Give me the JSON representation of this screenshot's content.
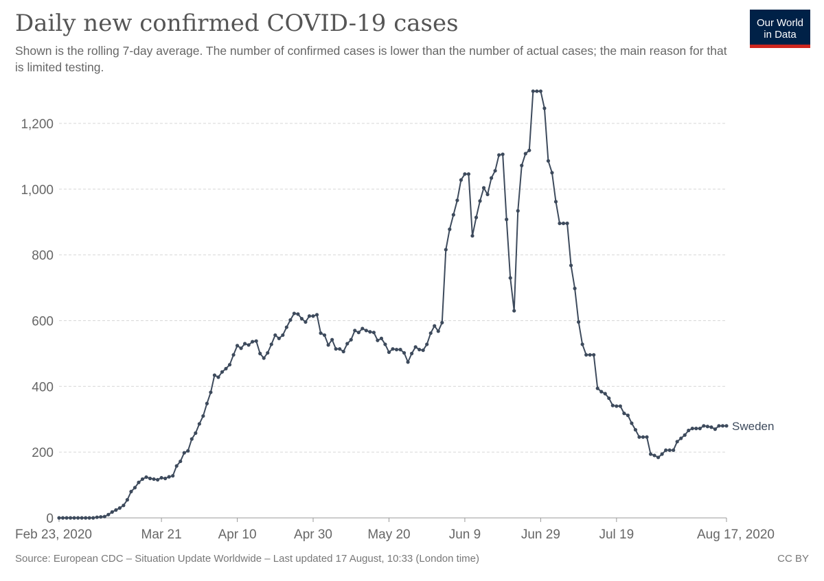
{
  "header": {
    "title": "Daily new confirmed COVID-19 cases",
    "subtitle": "Shown is the rolling 7-day average. The number of confirmed cases is lower than the number of actual cases; the main reason for that is limited testing."
  },
  "logo": {
    "line1": "Our World",
    "line2": "in Data",
    "bg_color": "#002147",
    "accent_color": "#ce261e"
  },
  "footer": {
    "source": "Source: European CDC – Situation Update Worldwide – Last updated 17 August, 10:33 (London time)",
    "license": "CC BY"
  },
  "chart_data": {
    "type": "line",
    "title": "Daily new confirmed COVID-19 cases",
    "xlabel": "",
    "ylabel": "",
    "ylim": [
      0,
      1300
    ],
    "y_ticks": [
      0,
      200,
      400,
      600,
      800,
      1000,
      1200
    ],
    "y_tick_labels": [
      "0",
      "200",
      "400",
      "600",
      "800",
      "1,000",
      "1,200"
    ],
    "x_start": "2020-02-23",
    "x_end": "2020-08-17",
    "x_ticks": [
      {
        "date": "2020-02-23",
        "label": "Feb 23, 2020"
      },
      {
        "date": "2020-03-21",
        "label": "Mar 21"
      },
      {
        "date": "2020-04-10",
        "label": "Apr 10"
      },
      {
        "date": "2020-04-30",
        "label": "Apr 30"
      },
      {
        "date": "2020-05-20",
        "label": "May 20"
      },
      {
        "date": "2020-06-09",
        "label": "Jun 9"
      },
      {
        "date": "2020-06-29",
        "label": "Jun 29"
      },
      {
        "date": "2020-07-19",
        "label": "Jul 19"
      },
      {
        "date": "2020-08-17",
        "label": "Aug 17, 2020"
      }
    ],
    "grid": true,
    "line_color": "#3d4a5c",
    "series": [
      {
        "name": "Sweden",
        "points": [
          [
            "2020-02-23",
            0
          ],
          [
            "2020-02-24",
            0
          ],
          [
            "2020-02-25",
            0
          ],
          [
            "2020-02-26",
            0
          ],
          [
            "2020-02-27",
            0
          ],
          [
            "2020-02-28",
            0
          ],
          [
            "2020-02-29",
            0
          ],
          [
            "2020-03-01",
            0
          ],
          [
            "2020-03-02",
            0
          ],
          [
            "2020-03-03",
            0
          ],
          [
            "2020-03-04",
            2
          ],
          [
            "2020-03-05",
            3
          ],
          [
            "2020-03-06",
            4
          ],
          [
            "2020-03-07",
            10
          ],
          [
            "2020-03-08",
            18
          ],
          [
            "2020-03-09",
            24
          ],
          [
            "2020-03-10",
            30
          ],
          [
            "2020-03-11",
            38
          ],
          [
            "2020-03-12",
            55
          ],
          [
            "2020-03-13",
            80
          ],
          [
            "2020-03-14",
            92
          ],
          [
            "2020-03-15",
            108
          ],
          [
            "2020-03-16",
            118
          ],
          [
            "2020-03-17",
            124
          ],
          [
            "2020-03-18",
            120
          ],
          [
            "2020-03-19",
            118
          ],
          [
            "2020-03-20",
            116
          ],
          [
            "2020-03-21",
            122
          ],
          [
            "2020-03-22",
            120
          ],
          [
            "2020-03-23",
            125
          ],
          [
            "2020-03-24",
            128
          ],
          [
            "2020-03-25",
            158
          ],
          [
            "2020-03-26",
            172
          ],
          [
            "2020-03-27",
            198
          ],
          [
            "2020-03-28",
            204
          ],
          [
            "2020-03-29",
            240
          ],
          [
            "2020-03-30",
            258
          ],
          [
            "2020-03-31",
            286
          ],
          [
            "2020-04-01",
            310
          ],
          [
            "2020-04-02",
            348
          ],
          [
            "2020-04-03",
            382
          ],
          [
            "2020-04-04",
            434
          ],
          [
            "2020-04-05",
            428
          ],
          [
            "2020-04-06",
            444
          ],
          [
            "2020-04-07",
            454
          ],
          [
            "2020-04-08",
            466
          ],
          [
            "2020-04-09",
            496
          ],
          [
            "2020-04-10",
            524
          ],
          [
            "2020-04-11",
            516
          ],
          [
            "2020-04-12",
            530
          ],
          [
            "2020-04-13",
            526
          ],
          [
            "2020-04-14",
            536
          ],
          [
            "2020-04-15",
            538
          ],
          [
            "2020-04-16",
            500
          ],
          [
            "2020-04-17",
            486
          ],
          [
            "2020-04-18",
            502
          ],
          [
            "2020-04-19",
            528
          ],
          [
            "2020-04-20",
            556
          ],
          [
            "2020-04-21",
            546
          ],
          [
            "2020-04-22",
            556
          ],
          [
            "2020-04-23",
            580
          ],
          [
            "2020-04-24",
            602
          ],
          [
            "2020-04-25",
            622
          ],
          [
            "2020-04-26",
            620
          ],
          [
            "2020-04-27",
            606
          ],
          [
            "2020-04-28",
            596
          ],
          [
            "2020-04-29",
            614
          ],
          [
            "2020-04-30",
            614
          ],
          [
            "2020-05-01",
            618
          ],
          [
            "2020-05-02",
            562
          ],
          [
            "2020-05-03",
            556
          ],
          [
            "2020-05-04",
            526
          ],
          [
            "2020-05-05",
            542
          ],
          [
            "2020-05-06",
            514
          ],
          [
            "2020-05-07",
            514
          ],
          [
            "2020-05-08",
            506
          ],
          [
            "2020-05-09",
            530
          ],
          [
            "2020-05-10",
            542
          ],
          [
            "2020-05-11",
            570
          ],
          [
            "2020-05-12",
            564
          ],
          [
            "2020-05-13",
            576
          ],
          [
            "2020-05-14",
            570
          ],
          [
            "2020-05-15",
            566
          ],
          [
            "2020-05-16",
            564
          ],
          [
            "2020-05-17",
            540
          ],
          [
            "2020-05-18",
            546
          ],
          [
            "2020-05-19",
            528
          ],
          [
            "2020-05-20",
            504
          ],
          [
            "2020-05-21",
            514
          ],
          [
            "2020-05-22",
            512
          ],
          [
            "2020-05-23",
            512
          ],
          [
            "2020-05-24",
            502
          ],
          [
            "2020-05-25",
            474
          ],
          [
            "2020-05-26",
            500
          ],
          [
            "2020-05-27",
            520
          ],
          [
            "2020-05-28",
            512
          ],
          [
            "2020-05-29",
            510
          ],
          [
            "2020-05-30",
            528
          ],
          [
            "2020-05-31",
            562
          ],
          [
            "2020-06-01",
            584
          ],
          [
            "2020-06-02",
            568
          ],
          [
            "2020-06-03",
            594
          ],
          [
            "2020-06-04",
            816
          ],
          [
            "2020-06-05",
            878
          ],
          [
            "2020-06-06",
            922
          ],
          [
            "2020-06-07",
            966
          ],
          [
            "2020-06-08",
            1028
          ],
          [
            "2020-06-09",
            1046
          ],
          [
            "2020-06-10",
            1046
          ],
          [
            "2020-06-11",
            858
          ],
          [
            "2020-06-12",
            914
          ],
          [
            "2020-06-13",
            964
          ],
          [
            "2020-06-14",
            1004
          ],
          [
            "2020-06-15",
            984
          ],
          [
            "2020-06-16",
            1034
          ],
          [
            "2020-06-17",
            1056
          ],
          [
            "2020-06-18",
            1104
          ],
          [
            "2020-06-19",
            1106
          ],
          [
            "2020-06-20",
            908
          ],
          [
            "2020-06-21",
            730
          ],
          [
            "2020-06-22",
            630
          ],
          [
            "2020-06-23",
            934
          ],
          [
            "2020-06-24",
            1072
          ],
          [
            "2020-06-25",
            1108
          ],
          [
            "2020-06-26",
            1118
          ],
          [
            "2020-06-27",
            1298
          ],
          [
            "2020-06-28",
            1298
          ],
          [
            "2020-06-29",
            1298
          ],
          [
            "2020-06-30",
            1246
          ],
          [
            "2020-07-01",
            1086
          ],
          [
            "2020-07-02",
            1050
          ],
          [
            "2020-07-03",
            962
          ],
          [
            "2020-07-04",
            896
          ],
          [
            "2020-07-05",
            896
          ],
          [
            "2020-07-06",
            896
          ],
          [
            "2020-07-07",
            768
          ],
          [
            "2020-07-08",
            698
          ],
          [
            "2020-07-09",
            596
          ],
          [
            "2020-07-10",
            528
          ],
          [
            "2020-07-11",
            496
          ],
          [
            "2020-07-12",
            496
          ],
          [
            "2020-07-13",
            496
          ],
          [
            "2020-07-14",
            394
          ],
          [
            "2020-07-15",
            384
          ],
          [
            "2020-07-16",
            378
          ],
          [
            "2020-07-17",
            364
          ],
          [
            "2020-07-18",
            342
          ],
          [
            "2020-07-19",
            340
          ],
          [
            "2020-07-20",
            340
          ],
          [
            "2020-07-21",
            318
          ],
          [
            "2020-07-22",
            312
          ],
          [
            "2020-07-23",
            288
          ],
          [
            "2020-07-24",
            268
          ],
          [
            "2020-07-25",
            246
          ],
          [
            "2020-07-26",
            246
          ],
          [
            "2020-07-27",
            246
          ],
          [
            "2020-07-28",
            194
          ],
          [
            "2020-07-29",
            190
          ],
          [
            "2020-07-30",
            184
          ],
          [
            "2020-07-31",
            194
          ],
          [
            "2020-08-01",
            206
          ],
          [
            "2020-08-02",
            206
          ],
          [
            "2020-08-03",
            206
          ],
          [
            "2020-08-04",
            232
          ],
          [
            "2020-08-05",
            242
          ],
          [
            "2020-08-06",
            252
          ],
          [
            "2020-08-07",
            266
          ],
          [
            "2020-08-08",
            272
          ],
          [
            "2020-08-09",
            272
          ],
          [
            "2020-08-10",
            272
          ],
          [
            "2020-08-11",
            280
          ],
          [
            "2020-08-12",
            278
          ],
          [
            "2020-08-13",
            276
          ],
          [
            "2020-08-14",
            270
          ],
          [
            "2020-08-15",
            280
          ],
          [
            "2020-08-16",
            280
          ],
          [
            "2020-08-17",
            280
          ]
        ]
      }
    ]
  }
}
